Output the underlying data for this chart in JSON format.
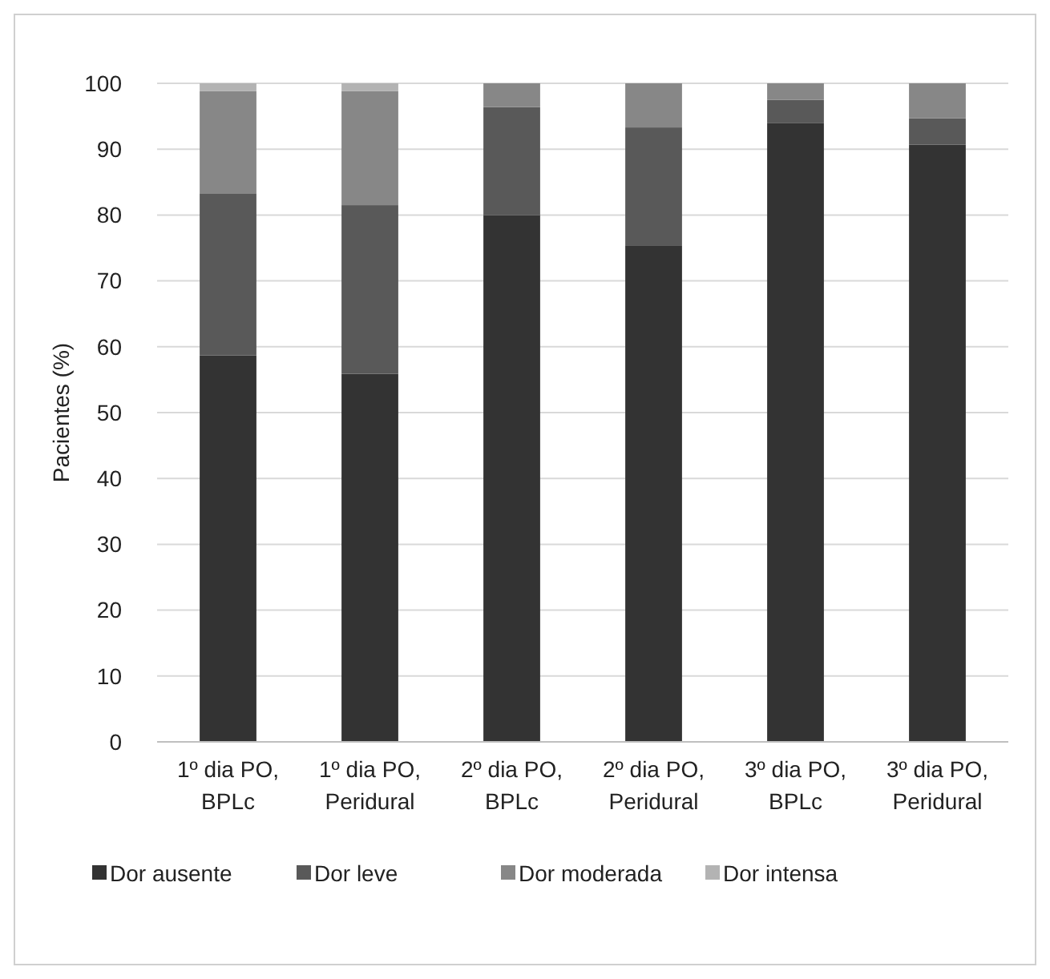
{
  "chart_data": {
    "type": "bar",
    "stacked": true,
    "ylabel": "Pacientes (%)",
    "categories": [
      "1º dia PO, BPLc",
      "1º dia PO, Peridural",
      "2º dia PO, BPLc",
      "2º dia PO, Peridural",
      "3º dia PO, BPLc",
      "3º dia PO, Peridural"
    ],
    "series": [
      {
        "name": "Dor ausente",
        "color": "#333333",
        "values": [
          58.7,
          55.9,
          80,
          75.4,
          94,
          90.7
        ]
      },
      {
        "name": "Dor leve",
        "color": "#595959",
        "values": [
          24.6,
          25.6,
          16.4,
          17.9,
          3.5,
          4
        ]
      },
      {
        "name": "Dor moderada",
        "color": "#878787",
        "values": [
          15.5,
          17.3,
          3.6,
          6.7,
          2.5,
          5.3
        ]
      },
      {
        "name": "Dor intensa",
        "color": "#b3b3b3",
        "values": [
          1.2,
          1.2,
          0,
          0,
          0,
          0
        ]
      }
    ],
    "ylim": [
      0,
      100
    ],
    "yticks": [
      0,
      10,
      20,
      30,
      40,
      50,
      60,
      70,
      80,
      90,
      100
    ],
    "grid": "y",
    "legend": "bottom"
  }
}
